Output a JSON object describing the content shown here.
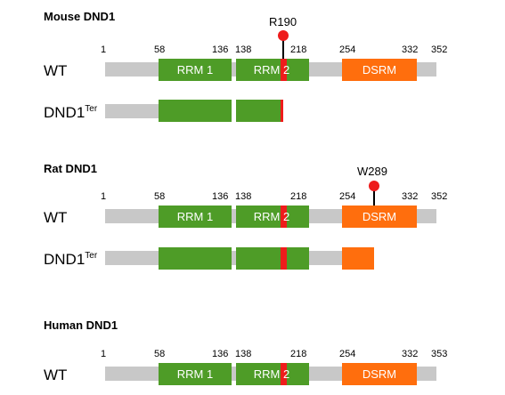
{
  "colors": {
    "backbone": "#c8c8c8",
    "rrm": "#4e9c27",
    "dsrm": "#ff6e0d",
    "mutation": "#ee1c1c",
    "text": "#000000"
  },
  "panels": [
    {
      "title": "Mouse DND1",
      "positions": [
        "1",
        "58",
        "136",
        "138",
        "218",
        "254",
        "332",
        "352"
      ],
      "domains": [
        "RRM 1",
        "RRM 2",
        "DSRM"
      ],
      "mutation": "R190",
      "rows": [
        {
          "label": "WT",
          "sup": ""
        },
        {
          "label": "DND1",
          "sup": "Ter"
        }
      ]
    },
    {
      "title": "Rat DND1",
      "positions": [
        "1",
        "58",
        "136",
        "138",
        "218",
        "254",
        "332",
        "352"
      ],
      "domains": [
        "RRM 1",
        "RRM 2",
        "DSRM"
      ],
      "mutation": "W289",
      "rows": [
        {
          "label": "WT",
          "sup": ""
        },
        {
          "label": "DND1",
          "sup": "Ter"
        }
      ]
    },
    {
      "title": "Human DND1",
      "positions": [
        "1",
        "58",
        "136",
        "138",
        "218",
        "254",
        "332",
        "353"
      ],
      "domains": [
        "RRM 1",
        "RRM 2",
        "DSRM"
      ],
      "rows": [
        {
          "label": "WT",
          "sup": ""
        }
      ]
    }
  ]
}
